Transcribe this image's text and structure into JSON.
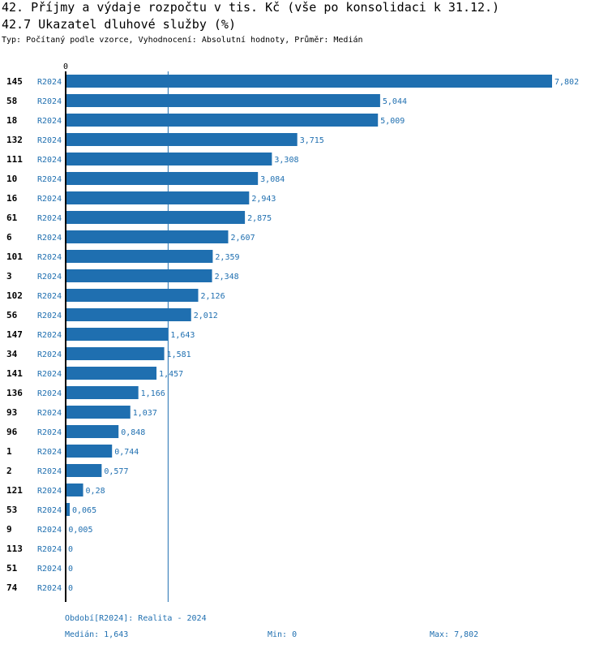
{
  "header": {
    "title": "42. Příjmy a výdaje rozpočtu v tis. Kč (vše po konsolidaci k 31.12.)",
    "subtitle": "42.7 Ukazatel dluhové služby (%)",
    "type_line": "Typ: Počítaný podle vzorce, Vyhodnocení: Absolutní hodnoty, Průměr: Medián"
  },
  "footer": {
    "period": "Období[R2024]: Realita - 2024",
    "median": "Medián: 1,643",
    "min": "Min: 0",
    "max": "Max: 7,802"
  },
  "colors": {
    "bar": "#1f6fb0",
    "period_label": "#1f6fb0",
    "value_label": "#1f6fb0",
    "axis": "#000000",
    "median_line": "#1f6fb0"
  },
  "chart_data": {
    "type": "bar",
    "orientation": "horizontal",
    "title": "42.7 Ukazatel dluhové služby (%)",
    "axis_zero_label": "0",
    "period": "R2024",
    "median": 1.643,
    "xlim": [
      0,
      7.802
    ],
    "categories": [
      "145",
      "58",
      "18",
      "132",
      "111",
      "10",
      "16",
      "61",
      "6",
      "101",
      "3",
      "102",
      "56",
      "147",
      "34",
      "141",
      "136",
      "93",
      "96",
      "1",
      "2",
      "121",
      "53",
      "9",
      "113",
      "51",
      "74"
    ],
    "values": [
      7.802,
      5.044,
      5.009,
      3.715,
      3.308,
      3.084,
      2.943,
      2.875,
      2.607,
      2.359,
      2.348,
      2.126,
      2.012,
      1.643,
      1.581,
      1.457,
      1.166,
      1.037,
      0.848,
      0.744,
      0.577,
      0.28,
      0.065,
      0.005,
      0,
      0,
      0
    ],
    "value_labels": [
      "7,802",
      "5,044",
      "5,009",
      "3,715",
      "3,308",
      "3,084",
      "2,943",
      "2,875",
      "2,607",
      "2,359",
      "2,348",
      "2,126",
      "2,012",
      "1,643",
      "1,581",
      "1,457",
      "1,166",
      "1,037",
      "0,848",
      "0,744",
      "0,577",
      "0,28",
      "0,065",
      "0,005",
      "0",
      "0",
      "0"
    ]
  }
}
